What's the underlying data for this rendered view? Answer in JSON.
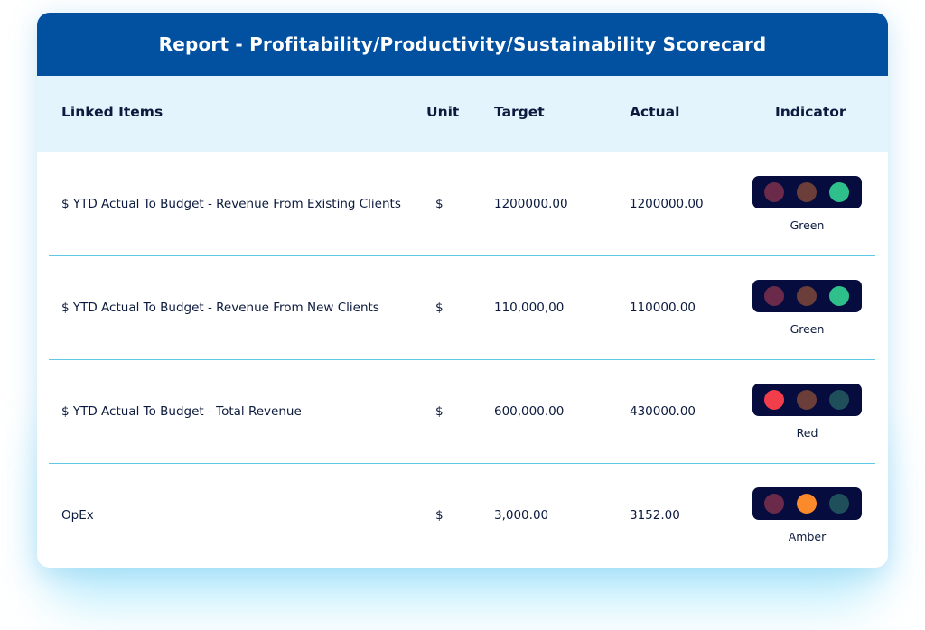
{
  "report": {
    "title": "Report - Profitability/Productivity/Sustainability Scorecard"
  },
  "table": {
    "headers": {
      "item": "Linked Items",
      "unit": "Unit",
      "target": "Target",
      "actual": "Actual",
      "indicator": "Indicator"
    },
    "rows": [
      {
        "item": "$ YTD Actual To Budget - Revenue From Existing Clients",
        "unit": "$",
        "target": "1200000.00",
        "actual": "1200000.00",
        "indicator": "Green",
        "lamps": [
          "#6b2a49",
          "#6b3e3a",
          "#2fbf8a"
        ]
      },
      {
        "item": "$ YTD Actual To Budget - Revenue From New Clients",
        "unit": "$",
        "target": "110,000,00",
        "actual": "110000.00",
        "indicator": "Green",
        "lamps": [
          "#6b2a49",
          "#6b3e3a",
          "#2fbf8a"
        ]
      },
      {
        "item": "$ YTD Actual To Budget - Total Revenue",
        "unit": "$",
        "target": "600,000.00",
        "actual": "430000.00",
        "indicator": "Red",
        "lamps": [
          "#f23d4a",
          "#6b3e3a",
          "#1f4f5b"
        ]
      },
      {
        "item": "OpEx",
        "unit": "$",
        "target": "3,000.00",
        "actual": "3152.00",
        "indicator": "Amber",
        "lamps": [
          "#6b2a49",
          "#fb8a2a",
          "#1f4f5b"
        ]
      }
    ]
  },
  "colors": {
    "title_bar": "#0251a1",
    "header_bg": "#e3f4fc",
    "divider": "#5fc8e4",
    "light_box": "#060d3e"
  }
}
